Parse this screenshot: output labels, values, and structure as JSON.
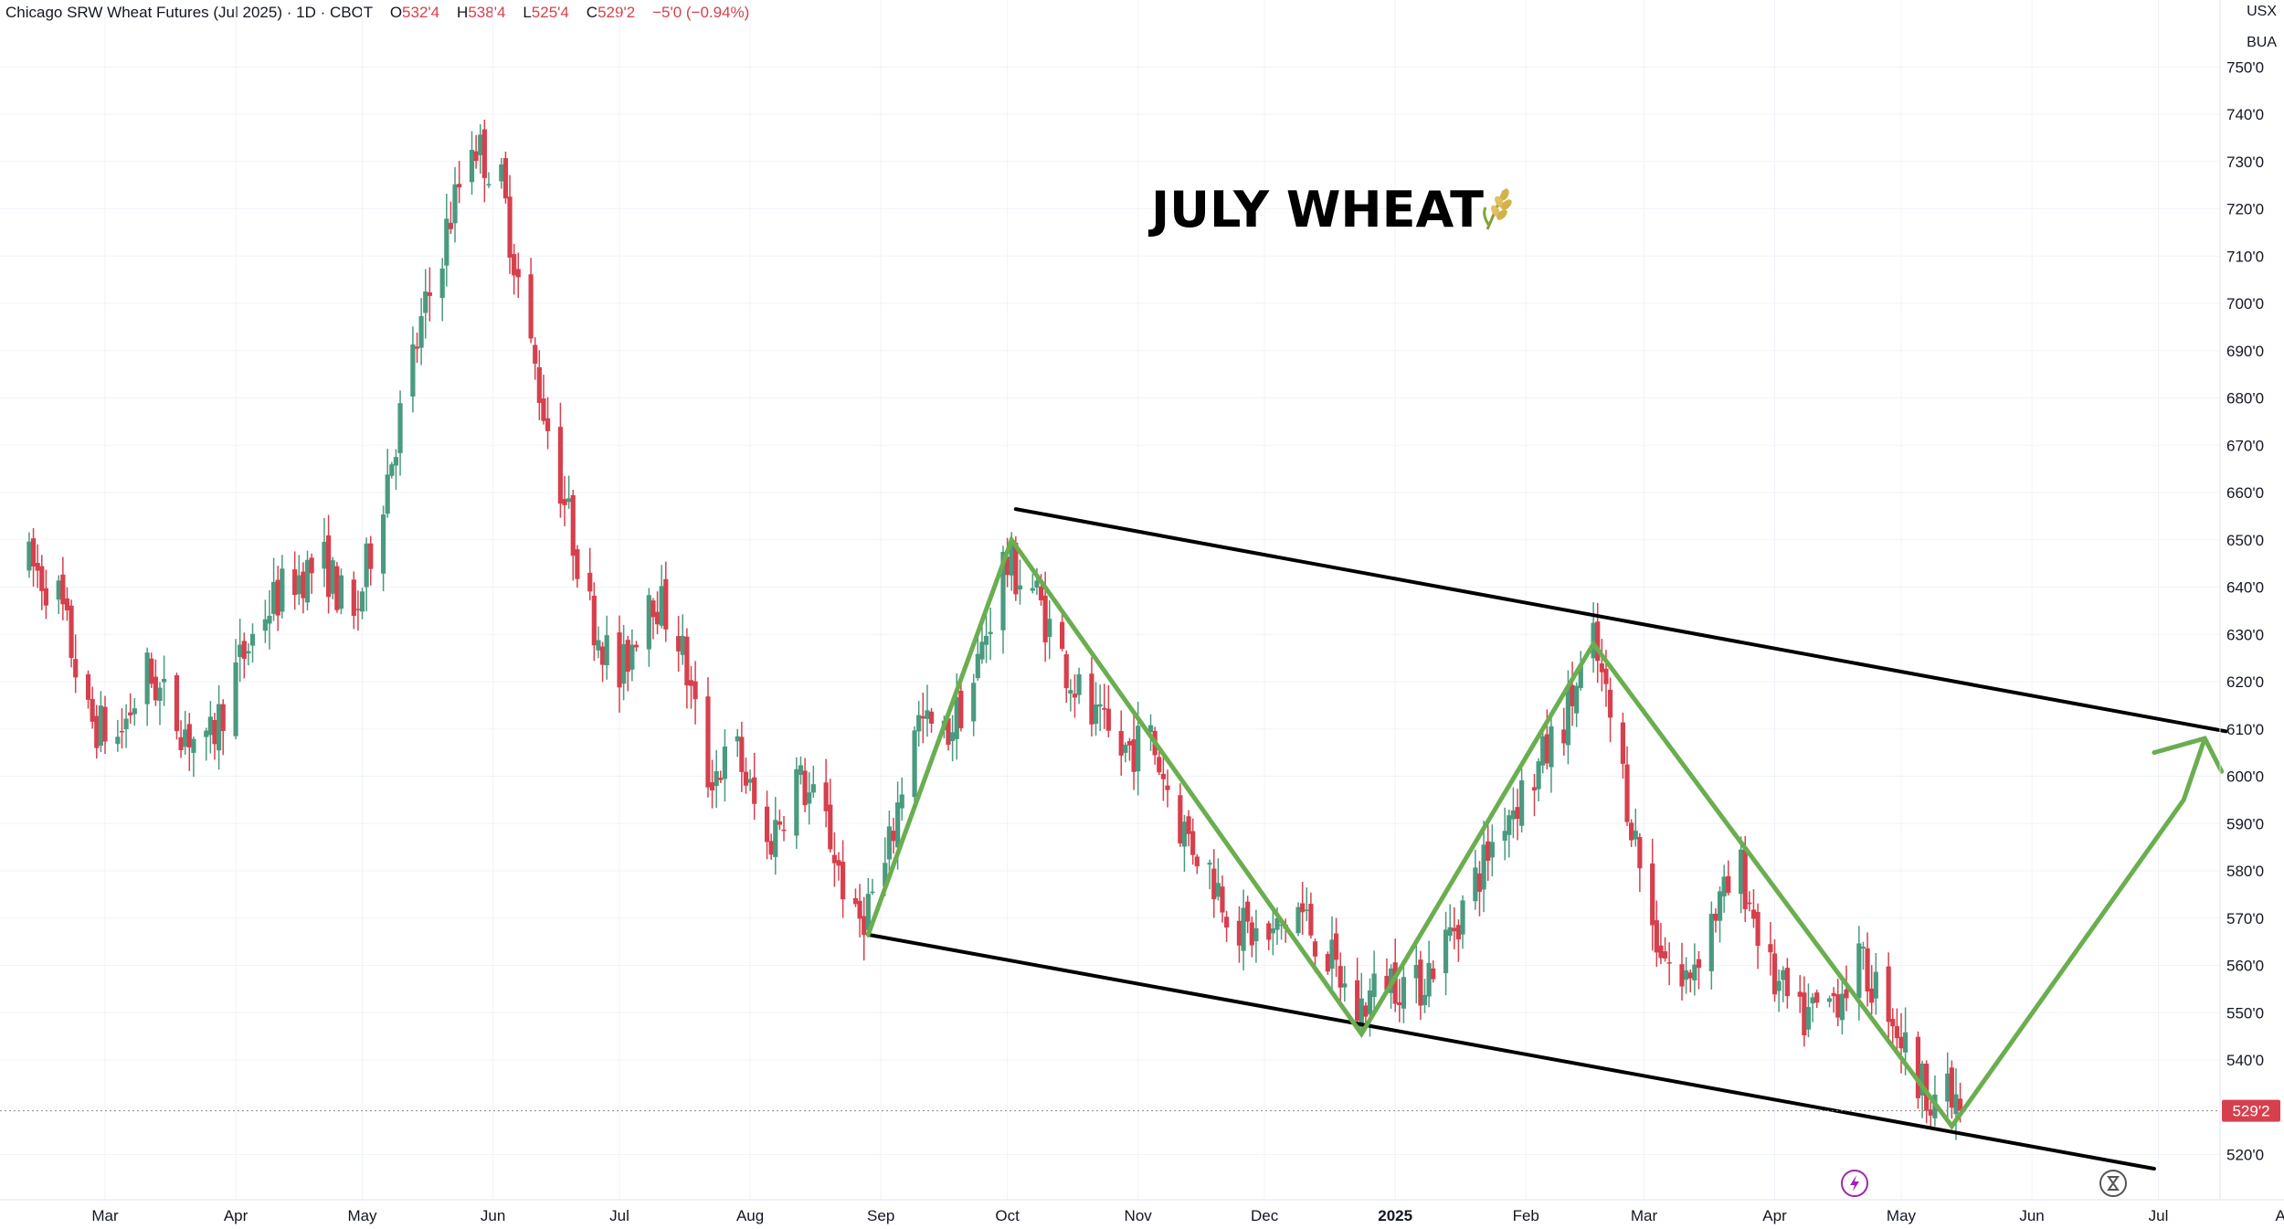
{
  "header": {
    "symbol_name": "Chicago SRW Wheat Futures (Jul 2025)",
    "interval": "1D",
    "exchange": "CBOT",
    "open_label": "O",
    "open_value": "532'4",
    "high_label": "H",
    "high_value": "538'4",
    "low_label": "L",
    "low_value": "525'4",
    "close_label": "C",
    "close_value": "529'2",
    "change": "−5'0 (−0.94%)"
  },
  "units": {
    "currency": "USX",
    "unit": "BUA"
  },
  "title": "JULY WHEAT",
  "title_icon": "wheat-icon",
  "last_price_label": "529'2",
  "colors": {
    "up": "#4a9a7f",
    "down": "#d6404d",
    "channel": "#000000",
    "projection": "#6aae50",
    "grid": "#f0f3fa"
  },
  "chart_data": {
    "type": "candlestick",
    "title": "JULY WHEAT",
    "y_unit": "US cents per bushel (price shown in 1/8 cent notation)",
    "ylim": [
      514,
      752
    ],
    "y_ticks": [
      "520'0",
      "530'0",
      "540'0",
      "550'0",
      "560'0",
      "570'0",
      "580'0",
      "590'0",
      "600'0",
      "610'0",
      "620'0",
      "630'0",
      "640'0",
      "650'0",
      "660'0",
      "670'0",
      "680'0",
      "690'0",
      "700'0",
      "710'0",
      "720'0",
      "730'0",
      "740'0",
      "750'0"
    ],
    "x_ticks": [
      {
        "label": "Mar",
        "date": "2024-03-01"
      },
      {
        "label": "Apr",
        "date": "2024-04-01"
      },
      {
        "label": "May",
        "date": "2024-05-01"
      },
      {
        "label": "Jun",
        "date": "2024-06-01"
      },
      {
        "label": "Jul",
        "date": "2024-07-01"
      },
      {
        "label": "Aug",
        "date": "2024-08-01"
      },
      {
        "label": "Sep",
        "date": "2024-09-01"
      },
      {
        "label": "Oct",
        "date": "2024-10-01"
      },
      {
        "label": "Nov",
        "date": "2024-11-01"
      },
      {
        "label": "Dec",
        "date": "2024-12-01"
      },
      {
        "label": "2025",
        "date": "2025-01-01",
        "bold": true
      },
      {
        "label": "Feb",
        "date": "2025-02-01"
      },
      {
        "label": "Mar",
        "date": "2025-03-01"
      },
      {
        "label": "Apr",
        "date": "2025-04-01"
      },
      {
        "label": "May",
        "date": "2025-05-01"
      },
      {
        "label": "Jun",
        "date": "2025-06-01"
      },
      {
        "label": "Jul",
        "date": "2025-07-01"
      },
      {
        "label": "Aug",
        "date": "2025-08-01"
      }
    ],
    "last_price": 529.25,
    "price_path": [
      {
        "date": "2024-02-12",
        "price": 645
      },
      {
        "date": "2024-02-19",
        "price": 638
      },
      {
        "date": "2024-02-26",
        "price": 612
      },
      {
        "date": "2024-03-04",
        "price": 608
      },
      {
        "date": "2024-03-11",
        "price": 622
      },
      {
        "date": "2024-03-18",
        "price": 612
      },
      {
        "date": "2024-03-25",
        "price": 605
      },
      {
        "date": "2024-04-01",
        "price": 622
      },
      {
        "date": "2024-04-08",
        "price": 635
      },
      {
        "date": "2024-04-15",
        "price": 642
      },
      {
        "date": "2024-04-22",
        "price": 645
      },
      {
        "date": "2024-04-29",
        "price": 632
      },
      {
        "date": "2024-05-06",
        "price": 660
      },
      {
        "date": "2024-05-13",
        "price": 688
      },
      {
        "date": "2024-05-20",
        "price": 712
      },
      {
        "date": "2024-05-27",
        "price": 735
      },
      {
        "date": "2024-06-03",
        "price": 725
      },
      {
        "date": "2024-06-10",
        "price": 690
      },
      {
        "date": "2024-06-17",
        "price": 662
      },
      {
        "date": "2024-06-24",
        "price": 635
      },
      {
        "date": "2024-07-01",
        "price": 620
      },
      {
        "date": "2024-07-08",
        "price": 640
      },
      {
        "date": "2024-07-15",
        "price": 630
      },
      {
        "date": "2024-07-22",
        "price": 600
      },
      {
        "date": "2024-07-29",
        "price": 605
      },
      {
        "date": "2024-08-05",
        "price": 585
      },
      {
        "date": "2024-08-12",
        "price": 600
      },
      {
        "date": "2024-08-19",
        "price": 590
      },
      {
        "date": "2024-08-26",
        "price": 568
      },
      {
        "date": "2024-09-02",
        "price": 580
      },
      {
        "date": "2024-09-09",
        "price": 612
      },
      {
        "date": "2024-09-16",
        "price": 608
      },
      {
        "date": "2024-09-23",
        "price": 620
      },
      {
        "date": "2024-09-30",
        "price": 645
      },
      {
        "date": "2024-10-07",
        "price": 640
      },
      {
        "date": "2024-10-14",
        "price": 625
      },
      {
        "date": "2024-10-21",
        "price": 612
      },
      {
        "date": "2024-10-28",
        "price": 605
      },
      {
        "date": "2024-11-04",
        "price": 608
      },
      {
        "date": "2024-11-11",
        "price": 590
      },
      {
        "date": "2024-11-18",
        "price": 580
      },
      {
        "date": "2024-11-25",
        "price": 568
      },
      {
        "date": "2024-12-02",
        "price": 565
      },
      {
        "date": "2024-12-09",
        "price": 572
      },
      {
        "date": "2024-12-16",
        "price": 562
      },
      {
        "date": "2024-12-23",
        "price": 550
      },
      {
        "date": "2024-12-30",
        "price": 558
      },
      {
        "date": "2025-01-06",
        "price": 555
      },
      {
        "date": "2025-01-13",
        "price": 565
      },
      {
        "date": "2025-01-20",
        "price": 578
      },
      {
        "date": "2025-01-27",
        "price": 592
      },
      {
        "date": "2025-02-03",
        "price": 600
      },
      {
        "date": "2025-02-10",
        "price": 612
      },
      {
        "date": "2025-02-17",
        "price": 628
      },
      {
        "date": "2025-02-24",
        "price": 600
      },
      {
        "date": "2025-03-03",
        "price": 568
      },
      {
        "date": "2025-03-10",
        "price": 555
      },
      {
        "date": "2025-03-17",
        "price": 570
      },
      {
        "date": "2025-03-24",
        "price": 580
      },
      {
        "date": "2025-03-31",
        "price": 558
      },
      {
        "date": "2025-04-07",
        "price": 548
      },
      {
        "date": "2025-04-14",
        "price": 552
      },
      {
        "date": "2025-04-21",
        "price": 560
      },
      {
        "date": "2025-04-28",
        "price": 552
      },
      {
        "date": "2025-05-05",
        "price": 535
      },
      {
        "date": "2025-05-12",
        "price": 532
      },
      {
        "date": "2025-05-15",
        "price": 529.25
      }
    ],
    "channel_lines": [
      {
        "name": "upper",
        "from": {
          "date": "2024-10-03",
          "price": 656.5
        },
        "to": {
          "date": "2025-07-17",
          "price": 609.5
        }
      },
      {
        "name": "lower",
        "from": {
          "date": "2024-08-29",
          "price": 566.5
        },
        "to": {
          "date": "2025-06-30",
          "price": 517
        }
      }
    ],
    "projection_path": [
      {
        "date": "2024-08-29",
        "price": 566.5
      },
      {
        "date": "2024-10-02",
        "price": 650
      },
      {
        "date": "2024-12-24",
        "price": 545.5
      },
      {
        "date": "2025-02-17",
        "price": 628
      },
      {
        "date": "2025-05-13",
        "price": 526
      },
      {
        "date": "2025-07-07",
        "price": 595
      },
      {
        "date": "2025-07-12",
        "price": 608
      }
    ],
    "projection_arrowhead": [
      {
        "date": "2025-06-30",
        "price": 605
      },
      {
        "date": "2025-07-12",
        "price": 608
      },
      {
        "date": "2025-07-16",
        "price": 601
      }
    ]
  }
}
